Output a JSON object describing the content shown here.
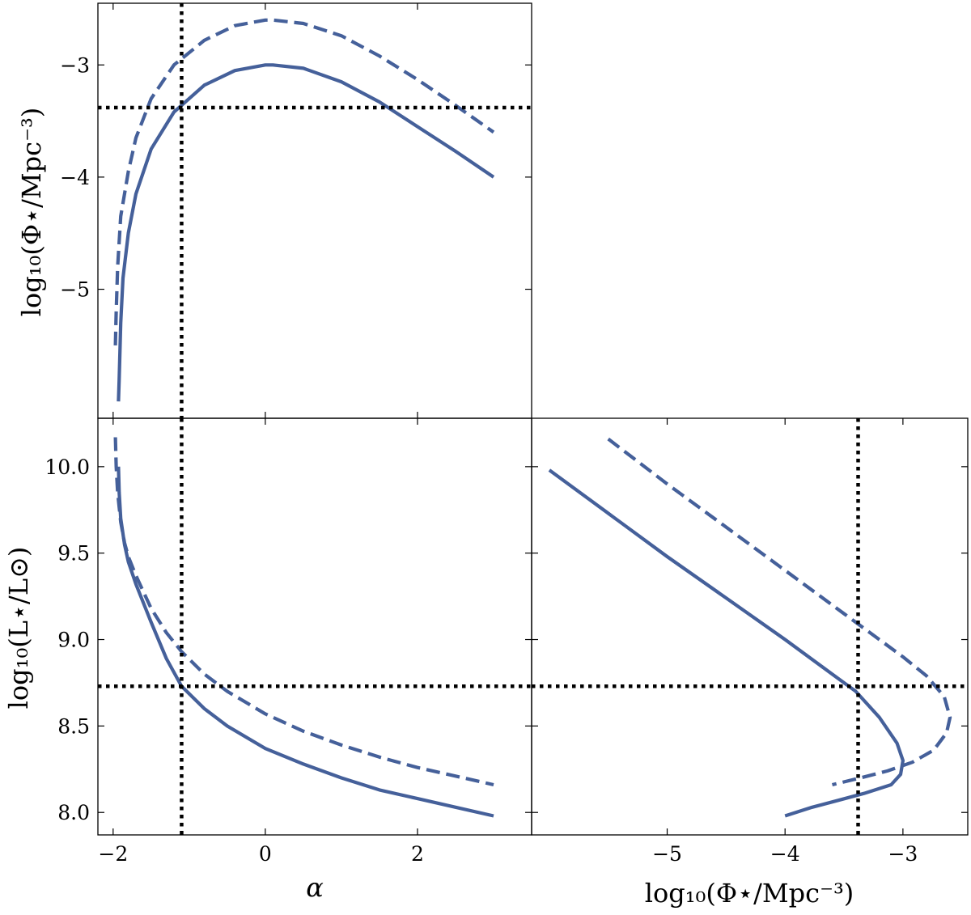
{
  "chart_data": [
    {
      "id": "top_left",
      "type": "line",
      "xlim": [
        -2.2,
        3.5
      ],
      "ylim": [
        -6.15,
        -2.45
      ],
      "xticks": [
        -2,
        0,
        2
      ],
      "xtick_labels": [
        "",
        "",
        ""
      ],
      "yticks": [
        -3,
        -4,
        -5
      ],
      "ytick_labels": [
        "−3",
        "−4",
        "−5"
      ],
      "xlabel": "",
      "ylabel": "log₁₀(Φ⋆/Mpc⁻³)",
      "series": [
        {
          "style": "solid",
          "color": "#45609a",
          "x": [
            -1.93,
            -1.92,
            -1.9,
            -1.87,
            -1.8,
            -1.7,
            -1.5,
            -1.2,
            -0.8,
            -0.4,
            0.0,
            0.1,
            0.5,
            1.0,
            1.5,
            2.0,
            2.5,
            3.0
          ],
          "y": [
            -6.0,
            -5.8,
            -5.3,
            -4.9,
            -4.5,
            -4.15,
            -3.75,
            -3.42,
            -3.18,
            -3.05,
            -3.0,
            -3.0,
            -3.03,
            -3.15,
            -3.33,
            -3.55,
            -3.77,
            -4.0
          ]
        },
        {
          "style": "dashed",
          "color": "#45609a",
          "x": [
            -1.97,
            -1.96,
            -1.94,
            -1.9,
            -1.8,
            -1.7,
            -1.5,
            -1.2,
            -0.8,
            -0.4,
            0.0,
            0.1,
            0.5,
            1.0,
            1.5,
            2.0,
            2.5,
            3.0
          ],
          "y": [
            -5.5,
            -5.2,
            -4.8,
            -4.35,
            -3.95,
            -3.65,
            -3.3,
            -3.0,
            -2.78,
            -2.65,
            -2.6,
            -2.6,
            -2.63,
            -2.74,
            -2.92,
            -3.13,
            -3.36,
            -3.6
          ]
        },
        {
          "style": "dotted",
          "color": "#000000",
          "orientation": "vertical",
          "value": -1.1
        },
        {
          "style": "dotted",
          "color": "#000000",
          "orientation": "horizontal",
          "value": -3.38
        }
      ]
    },
    {
      "id": "bottom_left",
      "type": "line",
      "xlim": [
        -2.2,
        3.5
      ],
      "ylim": [
        7.87,
        10.28
      ],
      "xticks": [
        -2,
        0,
        2
      ],
      "xtick_labels": [
        "−2",
        "0",
        "2"
      ],
      "yticks": [
        8.0,
        8.5,
        9.0,
        9.5,
        10.0
      ],
      "ytick_labels": [
        "8.0",
        "8.5",
        "9.0",
        "9.5",
        "10.0"
      ],
      "xlabel": "α",
      "ylabel": "log₁₀(L⋆/L⊙)",
      "series": [
        {
          "style": "solid",
          "color": "#45609a",
          "x": [
            -1.93,
            -1.92,
            -1.9,
            -1.85,
            -1.8,
            -1.7,
            -1.5,
            -1.3,
            -1.1,
            -0.8,
            -0.5,
            0.0,
            0.5,
            1.0,
            1.5,
            2.0,
            2.5,
            3.0
          ],
          "y": [
            10.0,
            9.85,
            9.7,
            9.55,
            9.45,
            9.32,
            9.1,
            8.89,
            8.73,
            8.6,
            8.5,
            8.37,
            8.28,
            8.2,
            8.13,
            8.08,
            8.03,
            7.98
          ]
        },
        {
          "style": "dashed",
          "color": "#45609a",
          "x": [
            -1.97,
            -1.96,
            -1.94,
            -1.9,
            -1.85,
            -1.8,
            -1.7,
            -1.5,
            -1.3,
            -1.1,
            -0.8,
            -0.5,
            0.0,
            0.5,
            1.0,
            1.5,
            2.0,
            2.5,
            3.0
          ],
          "y": [
            10.17,
            10.0,
            9.85,
            9.68,
            9.56,
            9.48,
            9.37,
            9.18,
            9.04,
            8.93,
            8.8,
            8.7,
            8.57,
            8.47,
            8.39,
            8.32,
            8.26,
            8.21,
            8.16
          ]
        },
        {
          "style": "dotted",
          "color": "#000000",
          "orientation": "vertical",
          "value": -1.1
        },
        {
          "style": "dotted",
          "color": "#000000",
          "orientation": "horizontal",
          "value": 8.73
        }
      ]
    },
    {
      "id": "bottom_right",
      "type": "line",
      "xlim": [
        -6.15,
        -2.45
      ],
      "ylim": [
        7.87,
        10.28
      ],
      "xticks": [
        -5,
        -4,
        -3
      ],
      "xtick_labels": [
        "−5",
        "−4",
        "−3"
      ],
      "yticks": [
        8.0,
        8.5,
        9.0,
        9.5,
        10.0
      ],
      "ytick_labels": [
        "",
        "",
        "",
        "",
        ""
      ],
      "xlabel": "log₁₀(Φ⋆/Mpc⁻³)",
      "ylabel": "",
      "series": [
        {
          "style": "solid",
          "color": "#45609a",
          "x": [
            -6.0,
            -5.5,
            -5.0,
            -4.5,
            -4.0,
            -3.6,
            -3.4,
            -3.2,
            -3.05,
            -3.0,
            -3.02,
            -3.1,
            -3.33,
            -3.55,
            -3.77,
            -4.0
          ],
          "y": [
            9.98,
            9.73,
            9.48,
            9.24,
            9.0,
            8.8,
            8.7,
            8.55,
            8.4,
            8.3,
            8.22,
            8.16,
            8.11,
            8.07,
            8.03,
            7.98
          ]
        },
        {
          "style": "dashed",
          "color": "#45609a",
          "x": [
            -5.5,
            -5.0,
            -4.5,
            -4.0,
            -3.5,
            -3.0,
            -2.8,
            -2.65,
            -2.6,
            -2.63,
            -2.74,
            -2.92,
            -3.13,
            -3.36,
            -3.6
          ],
          "y": [
            10.16,
            9.9,
            9.65,
            9.4,
            9.15,
            8.9,
            8.79,
            8.67,
            8.55,
            8.46,
            8.36,
            8.29,
            8.24,
            8.2,
            8.16
          ]
        },
        {
          "style": "dotted",
          "color": "#000000",
          "orientation": "vertical",
          "value": -3.38
        },
        {
          "style": "dotted",
          "color": "#000000",
          "orientation": "horizontal",
          "value": 8.73
        }
      ]
    }
  ]
}
